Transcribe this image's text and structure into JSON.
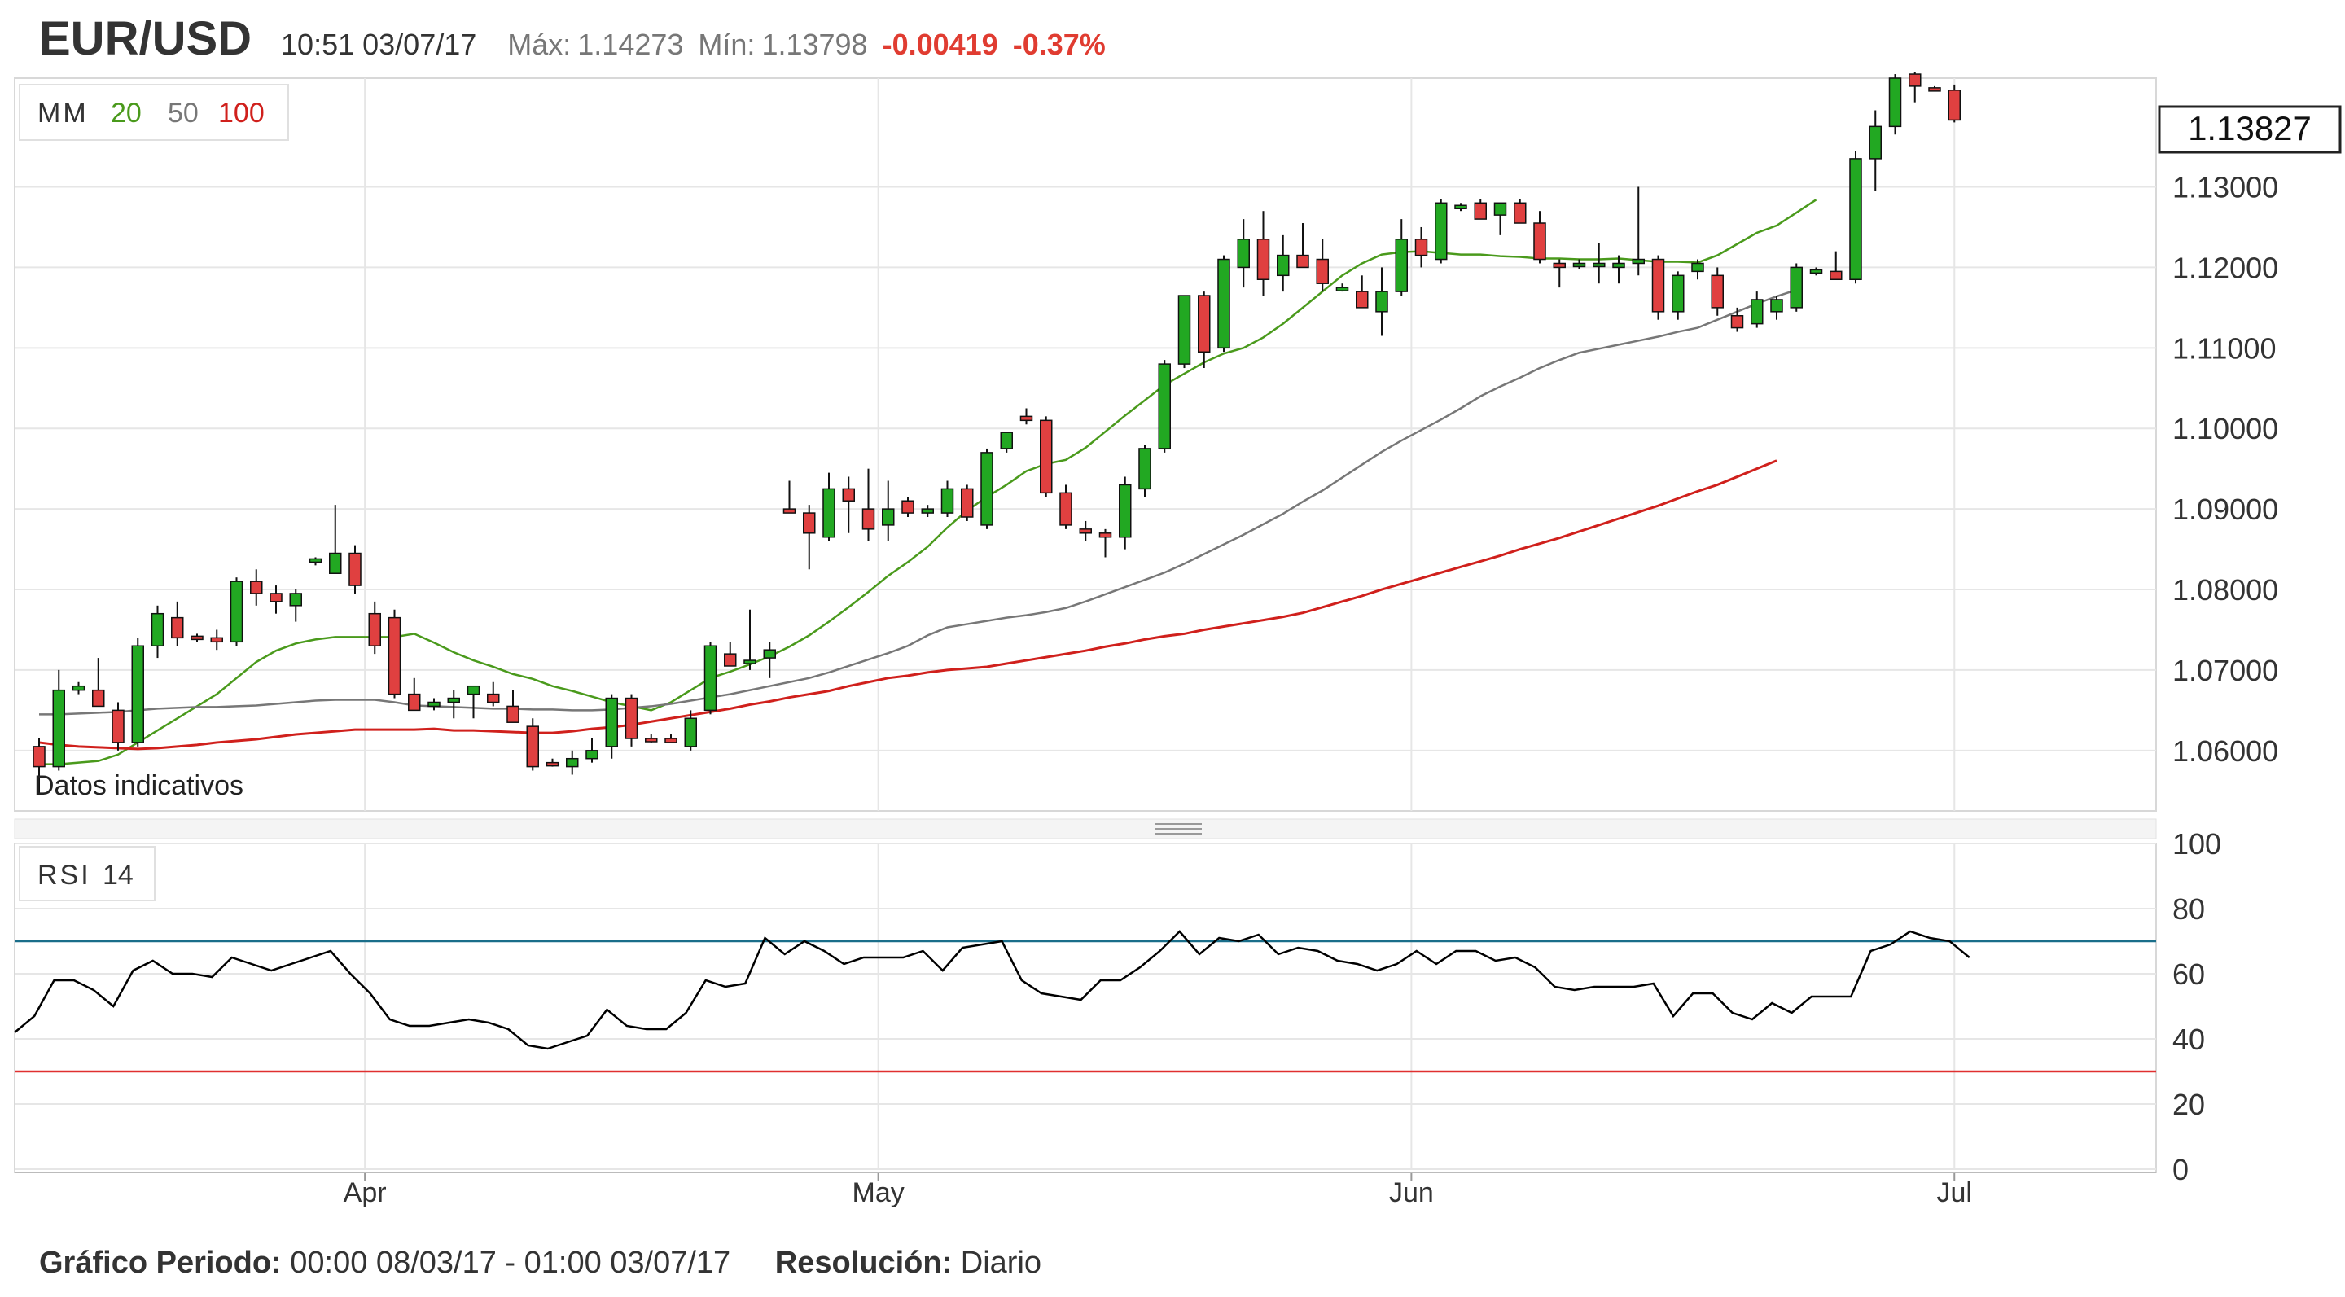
{
  "header": {
    "symbol": "EUR/USD",
    "timestamp": "10:51 03/07/17",
    "max_label": "Máx:",
    "max_value": "1.14273",
    "min_label": "Mín:",
    "min_value": "1.13798",
    "change": "-0.00419",
    "change_pct": "-0.37%"
  },
  "legend": {
    "ma_label": "MM",
    "ma_periods": [
      "20",
      "50",
      "100"
    ],
    "ma_colors": [
      "#4a9a1c",
      "#777777",
      "#d0201c"
    ],
    "indicative": "Datos indicativos",
    "rsi_label": "RSI",
    "rsi_period": "14"
  },
  "footer": {
    "period_label": "Gráfico Periodo:",
    "period_value": "00:00 08/03/17 - 01:00 03/07/17",
    "resolution_label": "Resolución:",
    "resolution_value": "Diario"
  },
  "chart_data": [
    {
      "type": "candlestick",
      "title": "EUR/USD",
      "current_price": "1.13827",
      "y_ticks": [
        "1.13000",
        "1.12000",
        "1.11000",
        "1.10000",
        "1.09000",
        "1.08000",
        "1.07000",
        "1.06000"
      ],
      "ylim": [
        1.0525,
        1.1435
      ],
      "x_ticks": [
        {
          "label": "Apr",
          "index": 16.5
        },
        {
          "label": "May",
          "index": 42.5
        },
        {
          "label": "Jun",
          "index": 69.5
        },
        {
          "label": "Jul",
          "index": 97
        }
      ],
      "colors": {
        "up": "#22a822",
        "down": "#e04040"
      },
      "candles": [
        [
          1.0605,
          1.0615,
          1.0545,
          1.058
        ],
        [
          1.058,
          1.07,
          1.0575,
          1.0675
        ],
        [
          1.0675,
          1.0685,
          1.067,
          1.068
        ],
        [
          1.0675,
          1.0715,
          1.0655,
          1.0655
        ],
        [
          1.065,
          1.066,
          1.06,
          1.061
        ],
        [
          1.061,
          1.074,
          1.0605,
          1.073
        ],
        [
          1.073,
          1.078,
          1.0715,
          1.077
        ],
        [
          1.0765,
          1.0785,
          1.073,
          1.074
        ],
        [
          1.0742,
          1.0745,
          1.0735,
          1.074
        ],
        [
          1.074,
          1.075,
          1.0725,
          1.0735
        ],
        [
          1.0735,
          1.0815,
          1.073,
          1.081
        ],
        [
          1.081,
          1.0825,
          1.078,
          1.0795
        ],
        [
          1.0795,
          1.0805,
          1.077,
          1.0785
        ],
        [
          1.078,
          1.08,
          1.076,
          1.0795
        ],
        [
          1.0835,
          1.084,
          1.083,
          1.0838
        ],
        [
          1.082,
          1.0905,
          1.082,
          1.0845
        ],
        [
          1.0845,
          1.0855,
          1.0795,
          1.0805
        ],
        [
          1.077,
          1.0785,
          1.072,
          1.073
        ],
        [
          1.0765,
          1.0775,
          1.0665,
          1.067
        ],
        [
          1.067,
          1.069,
          1.0655,
          1.065
        ],
        [
          1.0655,
          1.0665,
          1.065,
          1.066
        ],
        [
          1.066,
          1.0675,
          1.064,
          1.0665
        ],
        [
          1.067,
          1.068,
          1.064,
          1.068
        ],
        [
          1.067,
          1.0685,
          1.0655,
          1.066
        ],
        [
          1.0655,
          1.0675,
          1.0635,
          1.0635
        ],
        [
          1.063,
          1.064,
          1.0575,
          1.058
        ],
        [
          1.0585,
          1.059,
          1.058,
          1.0583
        ],
        [
          1.058,
          1.06,
          1.057,
          1.059
        ],
        [
          1.059,
          1.0615,
          1.0585,
          1.06
        ],
        [
          1.0605,
          1.067,
          1.059,
          1.0665
        ],
        [
          1.0665,
          1.067,
          1.0605,
          1.0615
        ],
        [
          1.0615,
          1.062,
          1.061,
          1.0612
        ],
        [
          1.0615,
          1.062,
          1.061,
          1.061
        ],
        [
          1.0605,
          1.065,
          1.06,
          1.064
        ],
        [
          1.065,
          1.0735,
          1.0645,
          1.073
        ],
        [
          1.072,
          1.0735,
          1.0705,
          1.0705
        ],
        [
          1.071,
          1.0775,
          1.07,
          1.0712
        ],
        [
          1.0715,
          1.0735,
          1.069,
          1.0725
        ],
        [
          1.09,
          1.0935,
          1.0895,
          1.0895
        ],
        [
          1.0895,
          1.0905,
          1.0825,
          1.087
        ],
        [
          1.0865,
          1.0945,
          1.086,
          1.0925
        ],
        [
          1.0925,
          1.094,
          1.087,
          1.091
        ],
        [
          1.09,
          1.095,
          1.086,
          1.0875
        ],
        [
          1.088,
          1.0935,
          1.086,
          1.09
        ],
        [
          1.091,
          1.0915,
          1.089,
          1.0895
        ],
        [
          1.0895,
          1.0905,
          1.089,
          1.09
        ],
        [
          1.0895,
          1.0935,
          1.089,
          1.0925
        ],
        [
          1.0925,
          1.093,
          1.0885,
          1.089
        ],
        [
          1.088,
          1.0975,
          1.0875,
          1.097
        ],
        [
          1.0975,
          1.0995,
          1.097,
          1.0995
        ],
        [
          1.1015,
          1.1025,
          1.1005,
          1.101
        ],
        [
          1.101,
          1.1015,
          1.0915,
          1.092
        ],
        [
          1.092,
          1.093,
          1.0875,
          1.088
        ],
        [
          1.0875,
          1.0885,
          1.086,
          1.087
        ],
        [
          1.087,
          1.0875,
          1.084,
          1.0865
        ],
        [
          1.0865,
          1.094,
          1.085,
          1.093
        ],
        [
          1.0925,
          1.098,
          1.0915,
          1.0975
        ],
        [
          1.0975,
          1.1085,
          1.097,
          1.108
        ],
        [
          1.108,
          1.1165,
          1.1075,
          1.1165
        ],
        [
          1.1165,
          1.117,
          1.1075,
          1.1095
        ],
        [
          1.11,
          1.1215,
          1.1095,
          1.121
        ],
        [
          1.12,
          1.126,
          1.1175,
          1.1235
        ],
        [
          1.1235,
          1.127,
          1.1165,
          1.1185
        ],
        [
          1.119,
          1.124,
          1.117,
          1.1215
        ],
        [
          1.1215,
          1.1255,
          1.12,
          1.12
        ],
        [
          1.121,
          1.1235,
          1.117,
          1.118
        ],
        [
          1.1175,
          1.118,
          1.117,
          1.1175
        ],
        [
          1.117,
          1.119,
          1.115,
          1.115
        ],
        [
          1.1145,
          1.12,
          1.1115,
          1.117
        ],
        [
          1.117,
          1.126,
          1.1165,
          1.1235
        ],
        [
          1.1235,
          1.125,
          1.12,
          1.1215
        ],
        [
          1.121,
          1.1285,
          1.1205,
          1.128
        ],
        [
          1.1275,
          1.128,
          1.127,
          1.1277
        ],
        [
          1.128,
          1.1285,
          1.126,
          1.126
        ],
        [
          1.1265,
          1.128,
          1.124,
          1.128
        ],
        [
          1.128,
          1.1285,
          1.126,
          1.1255
        ],
        [
          1.1255,
          1.127,
          1.1205,
          1.121
        ],
        [
          1.1205,
          1.121,
          1.1175,
          1.12
        ],
        [
          1.1203,
          1.121,
          1.1198,
          1.1205
        ],
        [
          1.1205,
          1.123,
          1.118,
          1.1205
        ],
        [
          1.12,
          1.1215,
          1.118,
          1.1205
        ],
        [
          1.1205,
          1.13,
          1.119,
          1.121
        ],
        [
          1.121,
          1.1215,
          1.1135,
          1.1145
        ],
        [
          1.1145,
          1.1195,
          1.1135,
          1.119
        ],
        [
          1.1195,
          1.121,
          1.1185,
          1.1205
        ],
        [
          1.119,
          1.12,
          1.114,
          1.115
        ],
        [
          1.114,
          1.115,
          1.112,
          1.1125
        ],
        [
          1.113,
          1.117,
          1.1125,
          1.116
        ],
        [
          1.1145,
          1.1165,
          1.1135,
          1.116
        ],
        [
          1.115,
          1.1205,
          1.1145,
          1.12
        ],
        [
          1.1195,
          1.12,
          1.119,
          1.1197
        ],
        [
          1.1195,
          1.122,
          1.1185,
          1.1185
        ],
        [
          1.1185,
          1.1345,
          1.118,
          1.1335
        ],
        [
          1.1335,
          1.1395,
          1.1295,
          1.1375
        ],
        [
          1.1375,
          1.144,
          1.1365,
          1.1435
        ],
        [
          1.144,
          1.1443,
          1.1405,
          1.1425
        ],
        [
          1.1423,
          1.1425,
          1.142,
          1.1422
        ],
        [
          1.142,
          1.1427,
          1.138,
          1.1383
        ]
      ],
      "ma20": [
        1.0583,
        1.0583,
        1.0585,
        1.0587,
        1.0595,
        1.061,
        1.0625,
        1.064,
        1.0655,
        1.067,
        1.069,
        1.071,
        1.0724,
        1.0733,
        1.0738,
        1.0741,
        1.0741,
        1.0741,
        1.0741,
        1.0745,
        1.0734,
        1.0722,
        1.0712,
        1.0704,
        1.0695,
        1.0689,
        1.068,
        1.0674,
        1.0667,
        1.066,
        1.0655,
        1.065,
        1.066,
        1.0675,
        1.069,
        1.0698,
        1.0707,
        1.0717,
        1.0729,
        1.0743,
        1.076,
        1.0778,
        1.0797,
        1.0817,
        1.0834,
        1.0853,
        1.0877,
        1.0898,
        1.0915,
        1.093,
        1.0947,
        1.0956,
        1.0961,
        1.0976,
        1.0996,
        1.1016,
        1.1035,
        1.1054,
        1.1068,
        1.1082,
        1.1093,
        1.11,
        1.1113,
        1.113,
        1.115,
        1.117,
        1.119,
        1.1205,
        1.1216,
        1.1219,
        1.122,
        1.1218,
        1.1216,
        1.1216,
        1.1214,
        1.1213,
        1.1211,
        1.1211,
        1.121,
        1.121,
        1.1211,
        1.1209,
        1.1207,
        1.1207,
        1.1206,
        1.1215,
        1.1229,
        1.1243,
        1.1252,
        1.1268,
        1.1284
      ],
      "ma50": [
        1.0645,
        1.0645,
        1.0646,
        1.0647,
        1.0648,
        1.065,
        1.0652,
        1.0653,
        1.0654,
        1.0654,
        1.0655,
        1.0656,
        1.0658,
        1.066,
        1.0662,
        1.0663,
        1.0663,
        1.0663,
        1.066,
        1.0656,
        1.0655,
        1.0654,
        1.0653,
        1.0652,
        1.0652,
        1.0651,
        1.0651,
        1.065,
        1.065,
        1.0651,
        1.0653,
        1.0655,
        1.0658,
        1.0662,
        1.0666,
        1.067,
        1.0675,
        1.068,
        1.0685,
        1.069,
        1.0697,
        1.0705,
        1.0713,
        1.0721,
        1.073,
        1.0743,
        1.0753,
        1.0757,
        1.0761,
        1.0765,
        1.0768,
        1.0772,
        1.0777,
        1.0785,
        1.0794,
        1.0803,
        1.0812,
        1.0821,
        1.0832,
        1.0844,
        1.0856,
        1.0868,
        1.0881,
        1.0894,
        1.0909,
        1.0923,
        1.0939,
        1.0955,
        1.0971,
        1.0985,
        1.0998,
        1.1011,
        1.1025,
        1.104,
        1.1052,
        1.1063,
        1.1075,
        1.1085,
        1.1094,
        1.1099,
        1.1104,
        1.1109,
        1.1114,
        1.112,
        1.1125,
        1.1135,
        1.1145,
        1.1155,
        1.1164,
        1.1172
      ],
      "ma100": [
        1.061,
        1.0607,
        1.0605,
        1.0604,
        1.0603,
        1.0602,
        1.0603,
        1.0605,
        1.0607,
        1.061,
        1.0612,
        1.0614,
        1.0617,
        1.062,
        1.0622,
        1.0624,
        1.0626,
        1.0626,
        1.0626,
        1.0626,
        1.0627,
        1.0625,
        1.0625,
        1.0624,
        1.0623,
        1.0622,
        1.0622,
        1.0624,
        1.0627,
        1.0629,
        1.0632,
        1.0636,
        1.064,
        1.0644,
        1.0648,
        1.0652,
        1.0657,
        1.0661,
        1.0666,
        1.067,
        1.0674,
        1.068,
        1.0685,
        1.069,
        1.0693,
        1.0697,
        1.07,
        1.0702,
        1.0704,
        1.0708,
        1.0712,
        1.0716,
        1.072,
        1.0724,
        1.0729,
        1.0733,
        1.0738,
        1.0742,
        1.0745,
        1.075,
        1.0754,
        1.0758,
        1.0762,
        1.0766,
        1.0771,
        1.0778,
        1.0785,
        1.0792,
        1.08,
        1.0807,
        1.0814,
        1.0821,
        1.0828,
        1.0835,
        1.0842,
        1.085,
        1.0857,
        1.0864,
        1.0872,
        1.088,
        1.0888,
        1.0896,
        1.0904,
        1.0913,
        1.0922,
        1.093,
        1.094,
        1.095,
        1.096
      ]
    },
    {
      "type": "line",
      "title": "RSI 14",
      "y_ticks": [
        "100",
        "80",
        "60",
        "40",
        "20",
        "0"
      ],
      "ylim": [
        0,
        100
      ],
      "overbought": 70,
      "oversold": 30,
      "colors": {
        "line": "#000000",
        "overbought": "#1a6e8a",
        "oversold": "#e03030"
      },
      "values": [
        42,
        47,
        58,
        58,
        55,
        50,
        61,
        64,
        60,
        60,
        59,
        65,
        63,
        61,
        63,
        65,
        67,
        60,
        54,
        46,
        44,
        44,
        45,
        46,
        45,
        43,
        38,
        37,
        39,
        41,
        49,
        44,
        43,
        43,
        48,
        58,
        56,
        57,
        71,
        66,
        70,
        67,
        63,
        65,
        65,
        65,
        67,
        61,
        68,
        69,
        70,
        58,
        54,
        53,
        52,
        58,
        58,
        62,
        67,
        73,
        66,
        71,
        70,
        72,
        66,
        68,
        67,
        64,
        63,
        61,
        63,
        67,
        63,
        67,
        67,
        64,
        65,
        62,
        56,
        55,
        56,
        56,
        56,
        57,
        47,
        54,
        54,
        48,
        46,
        51,
        48,
        53,
        53,
        53,
        67,
        69,
        73,
        71,
        70,
        65
      ]
    }
  ]
}
